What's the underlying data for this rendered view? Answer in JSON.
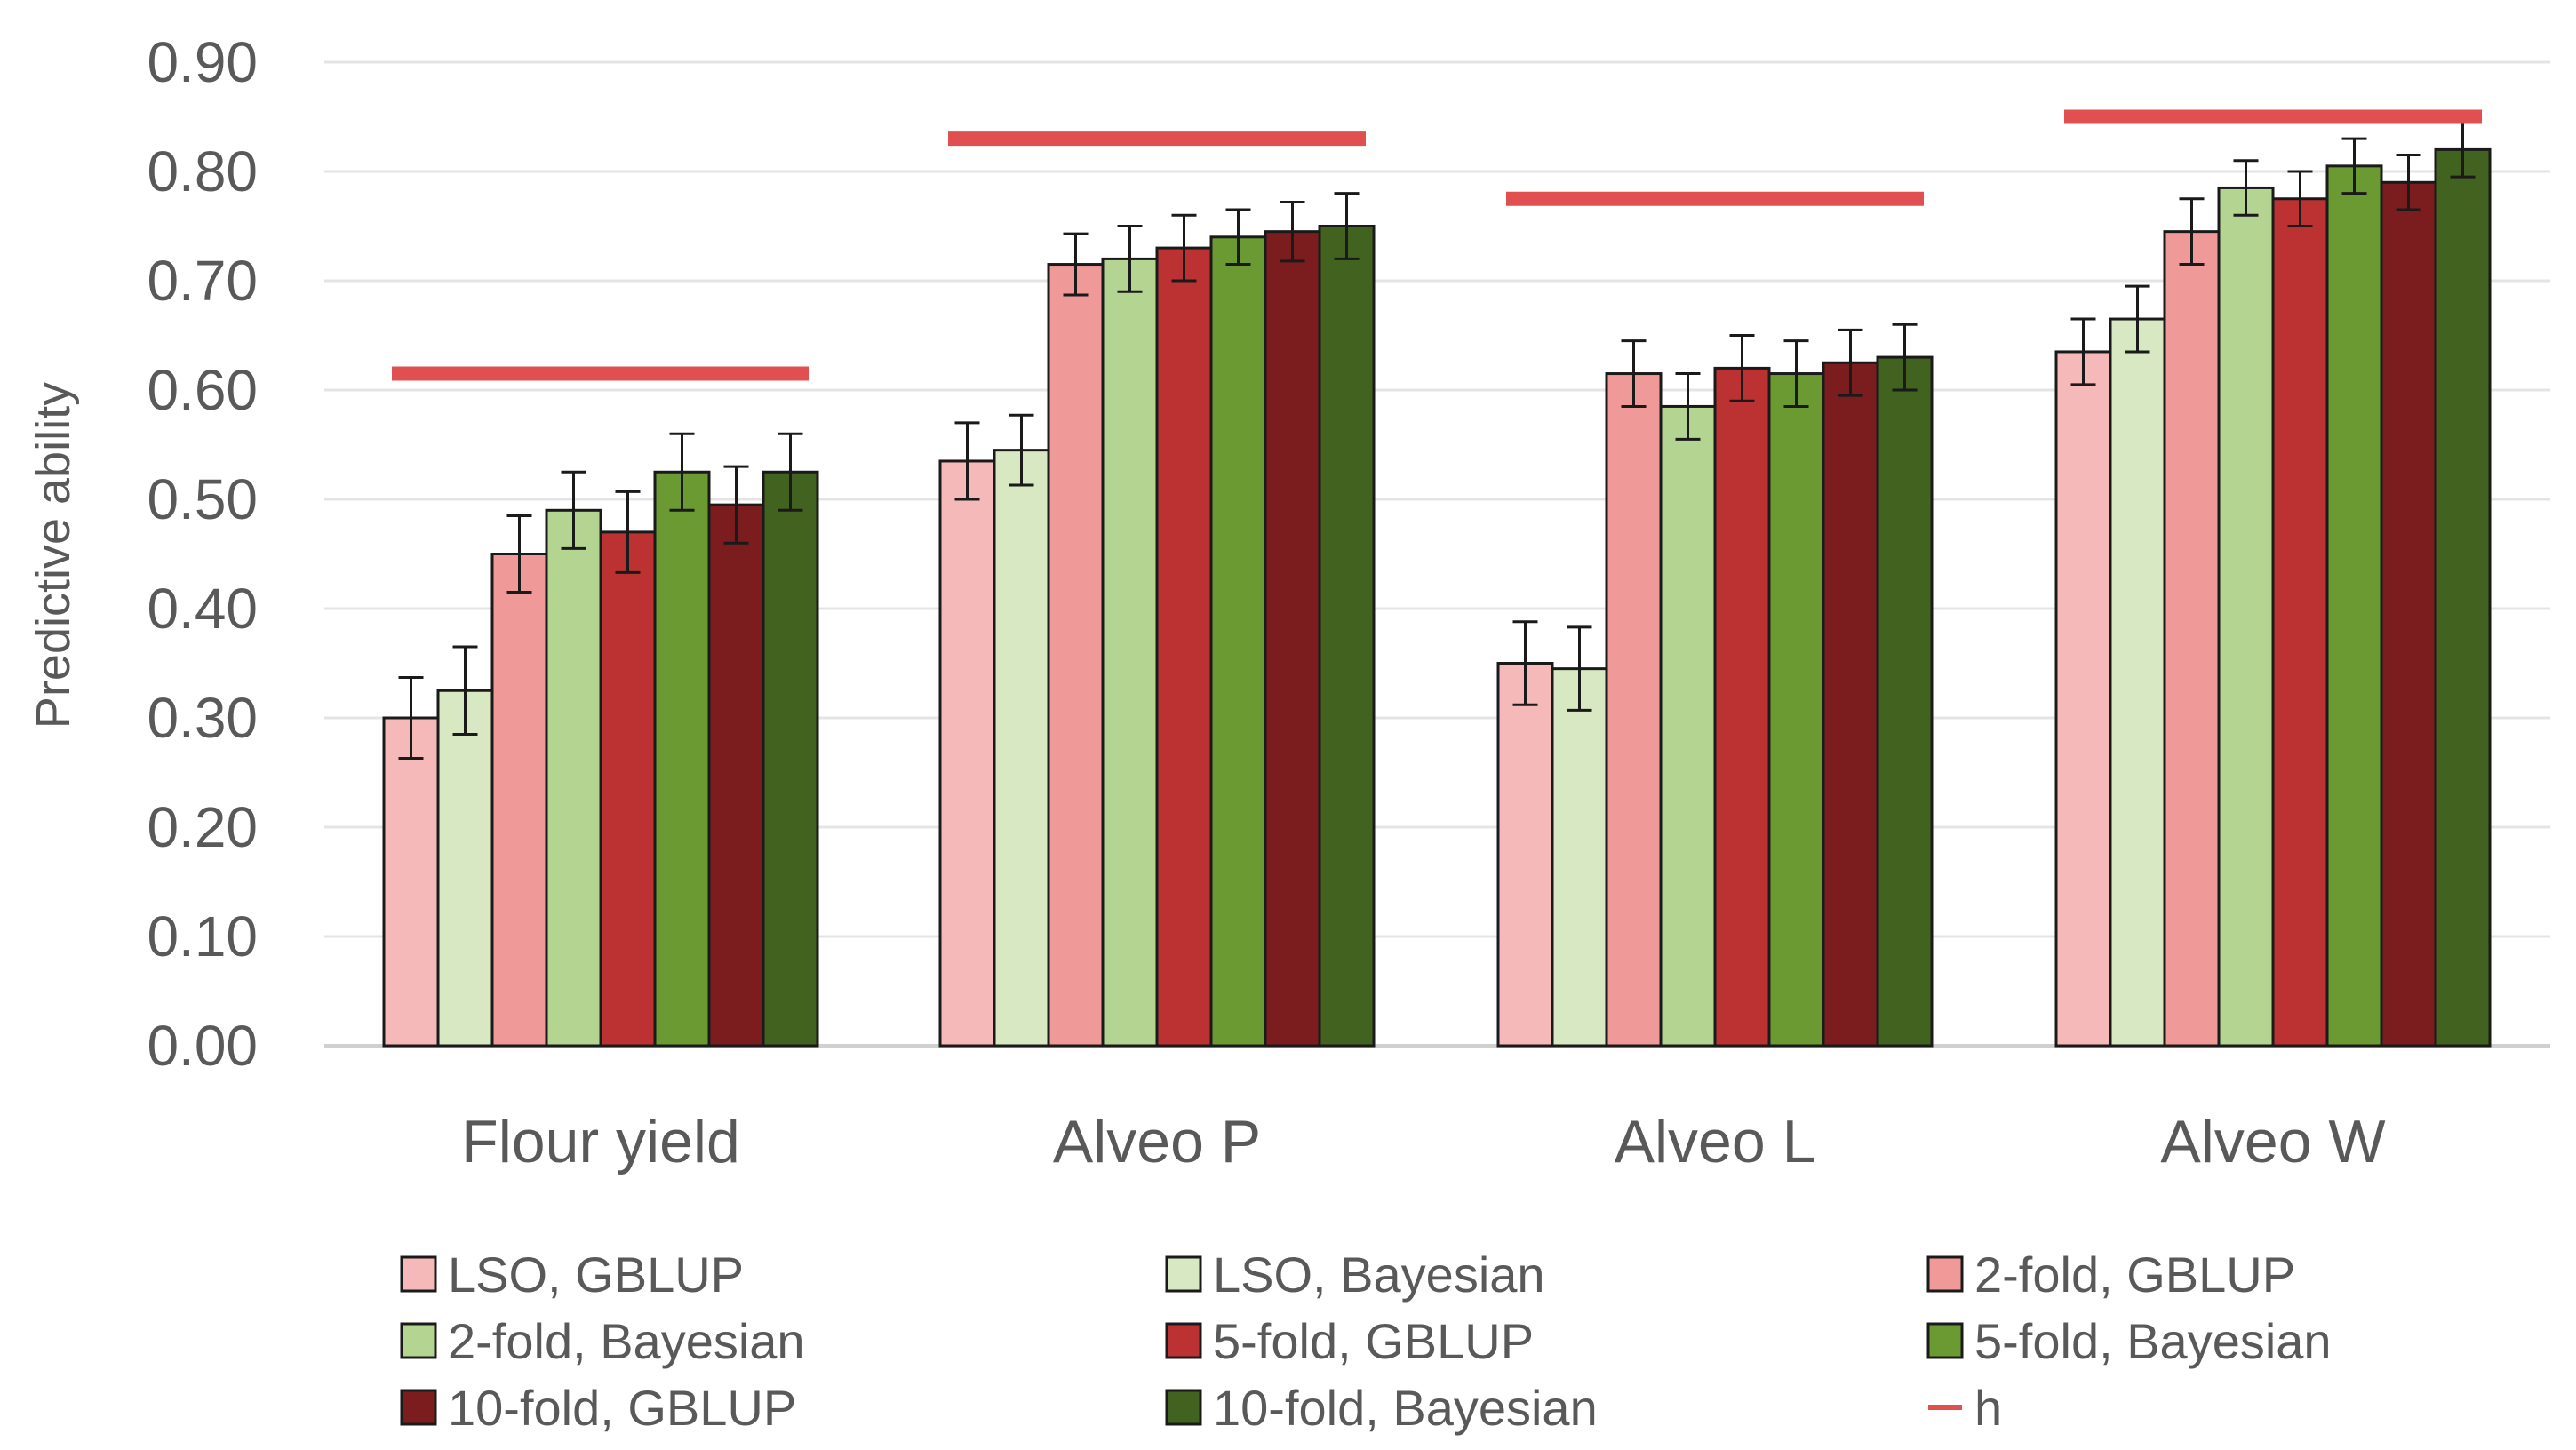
{
  "chart_data": {
    "type": "bar",
    "title": "",
    "xlabel": "",
    "ylabel": "Predictive ability",
    "ylim": [
      0,
      0.9
    ],
    "yticks": [
      "0.00",
      "0.10",
      "0.20",
      "0.30",
      "0.40",
      "0.50",
      "0.60",
      "0.70",
      "0.80",
      "0.90"
    ],
    "grid": true,
    "legend_position": "bottom",
    "categories": [
      "Flour yield",
      "Alveo P",
      "Alveo L",
      "Alveo W"
    ],
    "series": [
      {
        "name": "LSO, GBLUP",
        "color": "#f4b9b8",
        "values": [
          0.3,
          0.535,
          0.35,
          0.635
        ],
        "errors": [
          0.037,
          0.035,
          0.038,
          0.03
        ]
      },
      {
        "name": "LSO, Bayesian",
        "color": "#d7e8c2",
        "values": [
          0.325,
          0.545,
          0.345,
          0.665
        ],
        "errors": [
          0.04,
          0.032,
          0.038,
          0.03
        ]
      },
      {
        "name": "2-fold, GBLUP",
        "color": "#ef9a98",
        "values": [
          0.45,
          0.715,
          0.615,
          0.745
        ],
        "errors": [
          0.035,
          0.028,
          0.03,
          0.03
        ]
      },
      {
        "name": "2-fold, Bayesian",
        "color": "#b4d591",
        "values": [
          0.49,
          0.72,
          0.585,
          0.785
        ],
        "errors": [
          0.035,
          0.03,
          0.03,
          0.025
        ]
      },
      {
        "name": "5-fold, GBLUP",
        "color": "#bc3232",
        "values": [
          0.47,
          0.73,
          0.62,
          0.775
        ],
        "errors": [
          0.037,
          0.03,
          0.03,
          0.025
        ]
      },
      {
        "name": "5-fold, Bayesian",
        "color": "#6a9a31",
        "values": [
          0.525,
          0.74,
          0.615,
          0.805
        ],
        "errors": [
          0.035,
          0.025,
          0.03,
          0.025
        ]
      },
      {
        "name": "10-fold, GBLUP",
        "color": "#7b1d1f",
        "values": [
          0.495,
          0.745,
          0.625,
          0.79
        ],
        "errors": [
          0.035,
          0.027,
          0.03,
          0.025
        ]
      },
      {
        "name": "10-fold, Bayesian",
        "color": "#41631f",
        "values": [
          0.525,
          0.75,
          0.63,
          0.82
        ],
        "errors": [
          0.035,
          0.03,
          0.03,
          0.025
        ]
      }
    ],
    "h_series": {
      "name": "h",
      "color": "#e05050",
      "values": [
        0.615,
        0.83,
        0.775,
        0.85
      ]
    }
  }
}
